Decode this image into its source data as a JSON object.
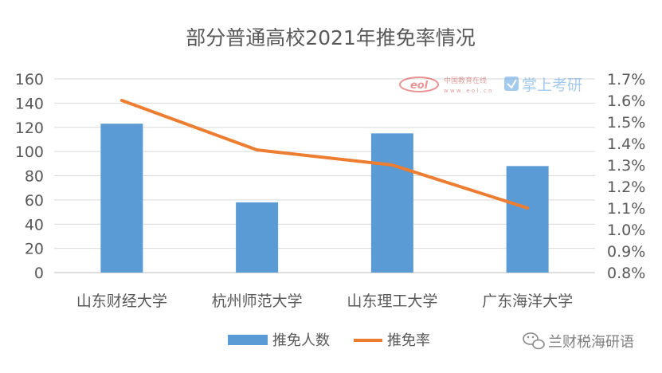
{
  "chart_data": {
    "type": "bar",
    "title": "部分普通高校2021年推免率情况",
    "categories": [
      "山东财经大学",
      "杭州师范大学",
      "山东理工大学",
      "广东海洋大学"
    ],
    "series": [
      {
        "name": "推免人数",
        "type": "bar",
        "axis": "left",
        "color": "#5B9BD5",
        "values": [
          123,
          58,
          115,
          88
        ]
      },
      {
        "name": "推免率",
        "type": "line",
        "axis": "right",
        "color": "#ED7D31",
        "values": [
          1.6,
          1.37,
          1.3,
          1.1
        ]
      }
    ],
    "y_left": {
      "min": 0,
      "max": 160,
      "step": 20,
      "ticks": [
        "0",
        "20",
        "40",
        "60",
        "80",
        "100",
        "120",
        "140",
        "160"
      ]
    },
    "y_right": {
      "min": 0.8,
      "max": 1.7,
      "step": 0.1,
      "ticks": [
        "0.8%",
        "0.9%",
        "1.0%",
        "1.1%",
        "1.2%",
        "1.3%",
        "1.4%",
        "1.5%",
        "1.6%",
        "1.7%"
      ]
    },
    "grid": true,
    "legend": "bottom"
  },
  "watermark": {
    "eol_logo": "eol",
    "eol_text": "中国教育在线",
    "eol_url": "w w w . e o l . c n",
    "brand": "掌上考研"
  },
  "wechat_tag": {
    "text": "兰财税海研语",
    "icon": "wechat-icon"
  }
}
